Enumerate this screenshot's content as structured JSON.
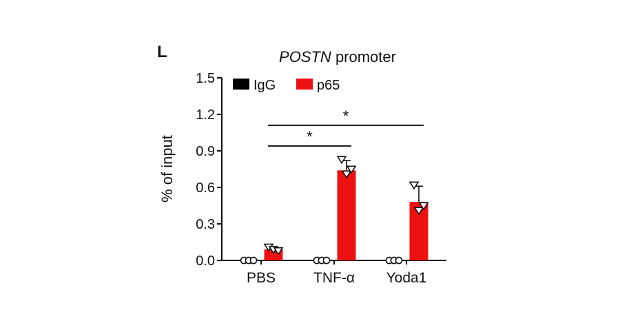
{
  "colors": {
    "IgG": "#000000",
    "p65": "#ee1111",
    "axis": "#111111",
    "point_fill": "#ffffff"
  },
  "chart_data": {
    "type": "bar",
    "panel_label": "L",
    "title": {
      "italic": "POSTN",
      "rest": "promoter"
    },
    "ylabel": "% of input",
    "xlabel": "",
    "ylim": [
      0,
      1.5
    ],
    "yticks": [
      "0.0",
      "0.3",
      "0.6",
      "0.9",
      "1.2",
      "1.5"
    ],
    "categories": [
      "PBS",
      "TNF-α",
      "Yoda1"
    ],
    "legend": {
      "position": "top-left",
      "entries": [
        "IgG",
        "p65"
      ]
    },
    "grid": false,
    "series": [
      {
        "name": "IgG",
        "values": [
          0.0,
          0.0,
          0.0
        ],
        "error": [
          0.0,
          0.0,
          0.0
        ],
        "points": [
          [
            0.0,
            0.0,
            0.0
          ],
          [
            0.0,
            0.0,
            0.0
          ],
          [
            0.0,
            0.0,
            0.0
          ]
        ],
        "marker": "circle"
      },
      {
        "name": "p65",
        "values": [
          0.09,
          0.74,
          0.48
        ],
        "error": [
          0.02,
          0.08,
          0.13
        ],
        "points": [
          [
            0.11,
            0.09,
            0.08
          ],
          [
            0.83,
            0.71,
            0.75
          ],
          [
            0.62,
            0.41,
            0.45
          ]
        ],
        "marker": "triangle-down"
      }
    ],
    "significance": [
      {
        "from": 0,
        "to": 1,
        "y": 0.94,
        "label": "*"
      },
      {
        "from": 0,
        "to": 2,
        "y": 1.11,
        "label": "*"
      }
    ]
  }
}
